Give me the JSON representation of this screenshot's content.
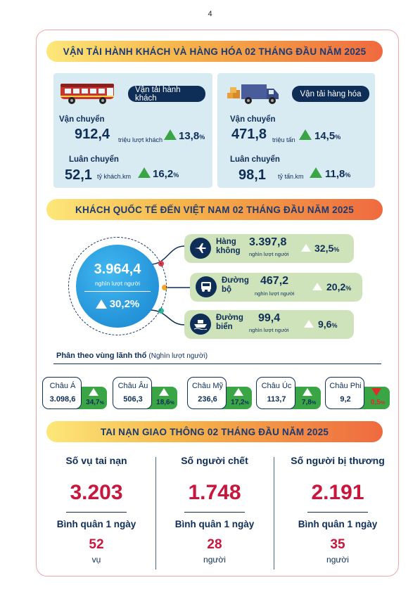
{
  "page_number": "4",
  "transport": {
    "title": "VẬN TẢI HÀNH KHÁCH VÀ HÀNG HÓA 02 THÁNG ĐẦU NĂM 2025",
    "passenger": {
      "label": "Vận tải hành khách",
      "volume_label": "Vận chuyển",
      "volume": "912,4",
      "volume_unit": "triệu lượt khách",
      "volume_growth": "13,8",
      "turnover_label": "Luân chuyển",
      "turnover": "52,1",
      "turnover_unit": "tỷ khách.km",
      "turnover_growth": "16,2"
    },
    "freight": {
      "label": "Vận tải hàng hóa",
      "volume_label": "Vận chuyển",
      "volume": "471,8",
      "volume_unit": "triệu tấn",
      "volume_growth": "14,5",
      "turnover_label": "Luân chuyển",
      "turnover": "98,1",
      "turnover_unit": "tỷ tấn.km",
      "turnover_growth": "11,8"
    },
    "pct_sign": "%"
  },
  "visitors": {
    "title": "KHÁCH QUỐC TẾ ĐẾN VIỆT NAM 02 THÁNG ĐẦU NĂM 2025",
    "total": "3.964,4",
    "total_unit": "nghìn lượt người",
    "total_growth": "30,2%",
    "modes": [
      {
        "name1": "Hàng",
        "name2": "không",
        "value": "3.397,8",
        "unit": "nghìn lượt người",
        "growth": "32,5",
        "icon": "airplane-icon"
      },
      {
        "name1": "Đường",
        "name2": "bộ",
        "value": "467,2",
        "unit": "nghìn lượt người",
        "growth": "20,2",
        "icon": "bus-icon"
      },
      {
        "name1": "Đường",
        "name2": "biển",
        "value": "99,4",
        "unit": "nghìn lượt người",
        "growth": "9,6",
        "icon": "ship-icon"
      }
    ],
    "region_heading": "Phân theo vùng lãnh thổ",
    "region_unit": "(Nghìn lượt người)",
    "regions": [
      {
        "name": "Châu Á",
        "value": "3.098,6",
        "growth": "34,7",
        "direction": "up"
      },
      {
        "name": "Châu Âu",
        "value": "506,3",
        "growth": "18,6",
        "direction": "up"
      },
      {
        "name": "Châu Mỹ",
        "value": "236,6",
        "growth": "17,2",
        "direction": "up"
      },
      {
        "name": "Châu Úc",
        "value": "113,7",
        "growth": "7,8",
        "direction": "up"
      },
      {
        "name": "Châu Phi",
        "value": "9,2",
        "growth": "0,5",
        "direction": "down"
      }
    ]
  },
  "accidents": {
    "title": "TAI NẠN GIAO THÔNG 02 THÁNG ĐẦU NĂM 2025",
    "columns": [
      {
        "title": "Số vụ tai nạn",
        "total": "3.203",
        "avg_label": "Bình quân 1 ngày",
        "avg": "52",
        "unit": "vụ"
      },
      {
        "title": "Số người chết",
        "total": "1.748",
        "avg_label": "Bình quân 1 ngày",
        "avg": "28",
        "unit": "người"
      },
      {
        "title": "Số người bị thương",
        "total": "2.191",
        "avg_label": "Bình quân 1 ngày",
        "avg": "35",
        "unit": "người"
      }
    ]
  },
  "colors": {
    "navy": "#0e2e58",
    "green": "#3aa545",
    "red": "#c8163d",
    "panel": "#d9ebf2",
    "accent": "#ef6a3f"
  }
}
